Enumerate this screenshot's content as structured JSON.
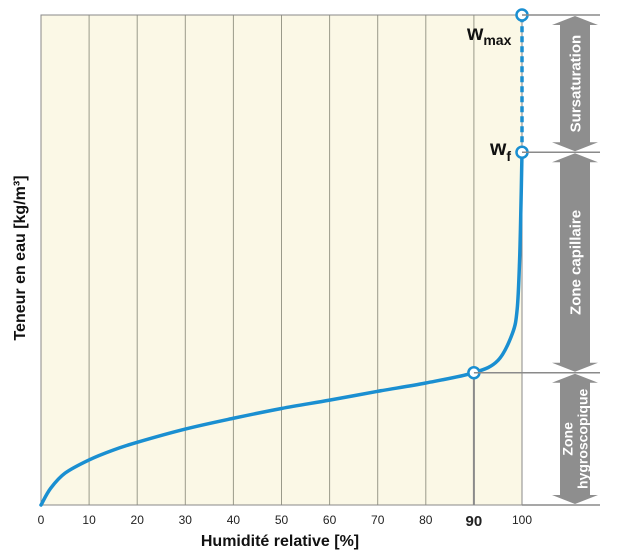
{
  "chart_data": {
    "type": "line",
    "xlabel": "Humidité relative [%]",
    "ylabel": "Teneur en eau [kg/m³]",
    "xlim": [
      0,
      100
    ],
    "x_ticks": [
      "0",
      "10",
      "20",
      "30",
      "40",
      "50",
      "60",
      "70",
      "80",
      "90",
      "100"
    ],
    "highlighted_tick": "90",
    "grid": true,
    "background_color": "#fbf8e6",
    "curve_color": "#1a8fd1",
    "zone_color": "#8e8e8e",
    "series": [
      {
        "x": [
          0,
          2,
          5,
          10,
          15,
          20,
          30,
          40,
          50,
          60,
          70,
          80,
          90,
          95,
          98,
          99,
          99.5,
          99.8,
          100
        ],
        "y": [
          0,
          0.034,
          0.065,
          0.092,
          0.112,
          0.128,
          0.155,
          0.177,
          0.197,
          0.214,
          0.232,
          0.249,
          0.27,
          0.295,
          0.35,
          0.4,
          0.5,
          0.62,
          0.72
        ]
      }
    ],
    "dashed_segment": {
      "x": [
        100,
        100
      ],
      "y": [
        0.72,
        1.0
      ]
    },
    "key_points": [
      {
        "name": "90",
        "x": 90,
        "y": 0.27
      },
      {
        "name": "w_f",
        "x": 100,
        "y": 0.72
      },
      {
        "name": "w_max",
        "x": 100,
        "y": 1.0
      }
    ],
    "annotations": {
      "w_max": {
        "main": "w",
        "sub": "max"
      },
      "w_f": {
        "main": "w",
        "sub": "f"
      }
    },
    "zones": [
      {
        "lines": [
          "Sursaturation"
        ],
        "y_from": 0.72,
        "y_to": 1.0
      },
      {
        "lines": [
          "Zone capillaire"
        ],
        "y_from": 0.27,
        "y_to": 0.72
      },
      {
        "lines": [
          "Zone",
          "hygroscopique"
        ],
        "y_from": 0.0,
        "y_to": 0.27
      }
    ]
  }
}
